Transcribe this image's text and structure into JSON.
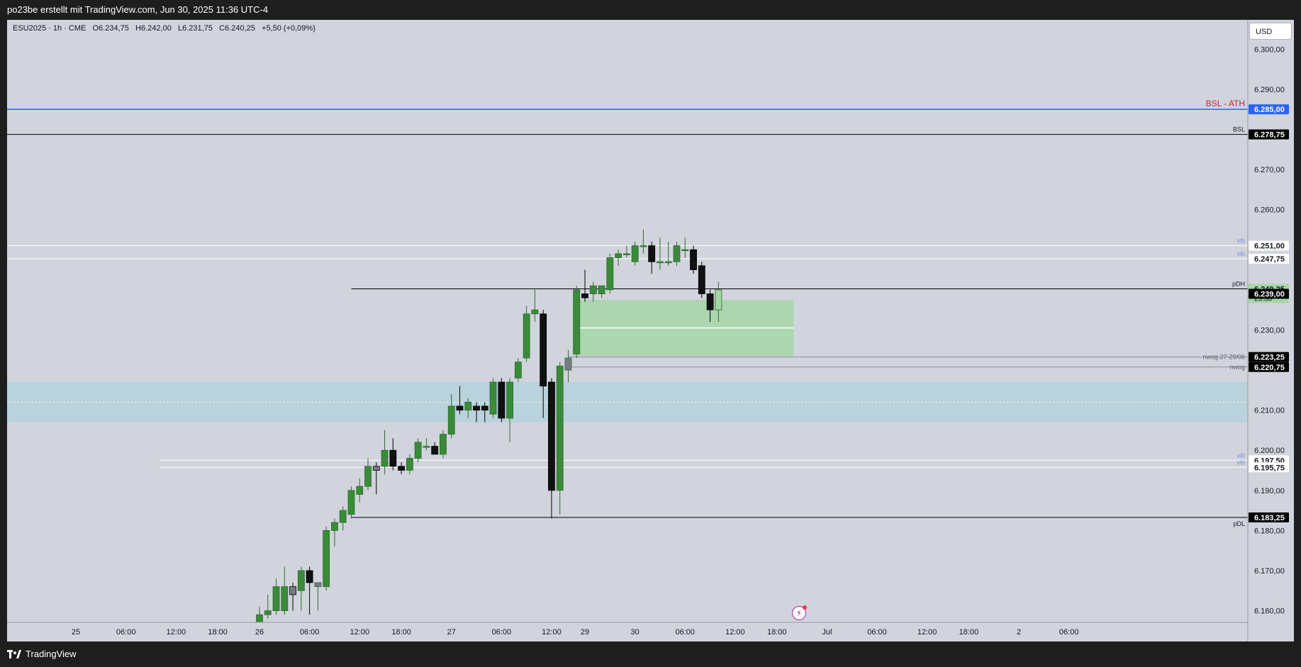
{
  "header": {
    "caption": "po23be erstellt mit TradingView.com, Jun 30, 2025 11:36 UTC-4"
  },
  "footer": {
    "brand": "TradingView",
    "logo_icon": "tradingview-logo-icon"
  },
  "legend": {
    "symbol": "ESU2025 · 1h · CME",
    "open": "O6.234,75",
    "high": "H6.242,00",
    "low": "L6.231,75",
    "close": "C6.240,25",
    "change": "+5,50 (+0,09%)"
  },
  "currency": "USD",
  "colors": {
    "background": "#d1d4dc",
    "bull": "#3a8a3a",
    "bear": "#111111",
    "neutral_candle": "#787b86",
    "bsl_ath": "#2962ff",
    "bsl_ath_text": "#c62828",
    "zone_green": "#a5d6a7",
    "zone_blue": "#b7d2dc",
    "line_black": "#000000",
    "tag_dark": "#000000",
    "tag_green": "#a5d6a7",
    "vib_text": "#7b8ed8"
  },
  "chart_data": {
    "type": "candlestick",
    "symbol": "ESU2025",
    "interval": "1h",
    "currency": "USD",
    "ylim": [
      6158,
      6307
    ],
    "y_ticks": [
      "6.300,00",
      "6.290,00",
      "6.270,00",
      "6.260,00",
      "6.230,00",
      "6.210,00",
      "6.200,00",
      "6.190,00",
      "6.180,00",
      "6.170,00",
      "6.160,00"
    ],
    "y_tick_values": [
      6300,
      6290,
      6270,
      6260,
      6230,
      6210,
      6200,
      6190,
      6180,
      6170,
      6160
    ],
    "x_ticks": [
      "25",
      "06:00",
      "12:00",
      "18:00",
      "26",
      "06:00",
      "12:00",
      "18:00",
      "27",
      "06:00",
      "12:00",
      "29",
      "30",
      "06:00",
      "12:00",
      "18:00",
      "Jul",
      "06:00",
      "12:00",
      "18:00",
      "2",
      "06:00"
    ],
    "x_tick_slots": [
      -22,
      -16,
      -10,
      -5,
      0,
      6,
      12,
      17,
      23,
      29,
      35,
      39,
      45,
      51,
      57,
      62,
      68,
      74,
      80,
      85,
      91,
      97
    ],
    "candles": [
      {
        "slot": 0,
        "o": 6157,
        "h": 6161,
        "l": 6156,
        "c": 6159
      },
      {
        "slot": 1,
        "o": 6159,
        "h": 6164,
        "l": 6158,
        "c": 6160
      },
      {
        "slot": 2,
        "o": 6160,
        "h": 6168,
        "l": 6159,
        "c": 6166
      },
      {
        "slot": 3,
        "o": 6160,
        "h": 6171,
        "l": 6159,
        "c": 6166
      },
      {
        "slot": 4,
        "o": 6166,
        "h": 6167,
        "l": 6160,
        "c": 6164
      },
      {
        "slot": 5,
        "o": 6165,
        "h": 6171,
        "l": 6160,
        "c": 6170
      },
      {
        "slot": 6,
        "o": 6170,
        "h": 6171,
        "l": 6159,
        "c": 6167
      },
      {
        "slot": 7,
        "o": 6166,
        "h": 6167,
        "l": 6160,
        "c": 6167
      },
      {
        "slot": 8,
        "o": 6166,
        "h": 6181,
        "l": 6165,
        "c": 6180
      },
      {
        "slot": 9,
        "o": 6180,
        "h": 6183,
        "l": 6176,
        "c": 6182
      },
      {
        "slot": 10,
        "o": 6182,
        "h": 6186,
        "l": 6180,
        "c": 6185
      },
      {
        "slot": 11,
        "o": 6184,
        "h": 6191,
        "l": 6183,
        "c": 6190
      },
      {
        "slot": 12,
        "o": 6189,
        "h": 6193,
        "l": 6187,
        "c": 6191
      },
      {
        "slot": 13,
        "o": 6191,
        "h": 6198,
        "l": 6190,
        "c": 6196
      },
      {
        "slot": 14,
        "o": 6196,
        "h": 6197,
        "l": 6189,
        "c": 6195
      },
      {
        "slot": 15,
        "o": 6196,
        "h": 6205,
        "l": 6194,
        "c": 6200
      },
      {
        "slot": 16,
        "o": 6200,
        "h": 6203,
        "l": 6195,
        "c": 6196
      },
      {
        "slot": 17,
        "o": 6196,
        "h": 6197,
        "l": 6194,
        "c": 6195
      },
      {
        "slot": 18,
        "o": 6195,
        "h": 6199,
        "l": 6194,
        "c": 6198
      },
      {
        "slot": 19,
        "o": 6198,
        "h": 6203,
        "l": 6197,
        "c": 6202
      },
      {
        "slot": 20,
        "o": 6201,
        "h": 6203,
        "l": 6200,
        "c": 6201
      },
      {
        "slot": 21,
        "o": 6201,
        "h": 6202,
        "l": 6199,
        "c": 6199
      },
      {
        "slot": 22,
        "o": 6199,
        "h": 6205,
        "l": 6198,
        "c": 6204
      },
      {
        "slot": 23,
        "o": 6204,
        "h": 6214,
        "l": 6203,
        "c": 6211
      },
      {
        "slot": 24,
        "o": 6211,
        "h": 6216,
        "l": 6209,
        "c": 6210
      },
      {
        "slot": 25,
        "o": 6210,
        "h": 6213,
        "l": 6208,
        "c": 6212
      },
      {
        "slot": 26,
        "o": 6211,
        "h": 6212,
        "l": 6207,
        "c": 6210
      },
      {
        "slot": 27,
        "o": 6211,
        "h": 6212,
        "l": 6207,
        "c": 6210
      },
      {
        "slot": 28,
        "o": 6209,
        "h": 6218,
        "l": 6208,
        "c": 6217
      },
      {
        "slot": 29,
        "o": 6217,
        "h": 6218,
        "l": 6207,
        "c": 6208
      },
      {
        "slot": 30,
        "o": 6208,
        "h": 6218,
        "l": 6202,
        "c": 6217
      },
      {
        "slot": 31,
        "o": 6218,
        "h": 6223,
        "l": 6217,
        "c": 6222
      },
      {
        "slot": 32,
        "o": 6223,
        "h": 6236,
        "l": 6222,
        "c": 6234
      },
      {
        "slot": 33,
        "o": 6234,
        "h": 6240,
        "l": 6232,
        "c": 6235
      },
      {
        "slot": 34,
        "o": 6234,
        "h": 6235,
        "l": 6208,
        "c": 6216
      },
      {
        "slot": 35,
        "o": 6217,
        "h": 6218,
        "l": 6183,
        "c": 6190
      },
      {
        "slot": 36,
        "o": 6190,
        "h": 6222,
        "l": 6184,
        "c": 6221
      },
      {
        "slot": 37,
        "o": 6220,
        "h": 6225,
        "l": 6217,
        "c": 6223
      },
      {
        "slot": 38,
        "o": 6224,
        "h": 6241,
        "l": 6223,
        "c": 6240
      },
      {
        "slot": 39,
        "o": 6239,
        "h": 6245,
        "l": 6237,
        "c": 6238
      },
      {
        "slot": 40,
        "o": 6239,
        "h": 6242,
        "l": 6237,
        "c": 6241
      },
      {
        "slot": 41,
        "o": 6239,
        "h": 6241,
        "l": 6238,
        "c": 6241
      },
      {
        "slot": 42,
        "o": 6240,
        "h": 6249,
        "l": 6239,
        "c": 6248
      },
      {
        "slot": 43,
        "o": 6248,
        "h": 6250,
        "l": 6246,
        "c": 6249
      },
      {
        "slot": 44,
        "o": 6249,
        "h": 6251,
        "l": 6248,
        "c": 6249
      },
      {
        "slot": 45,
        "o": 6247,
        "h": 6252,
        "l": 6246,
        "c": 6251
      },
      {
        "slot": 46,
        "o": 6251,
        "h": 6255,
        "l": 6249,
        "c": 6251
      },
      {
        "slot": 47,
        "o": 6251,
        "h": 6252,
        "l": 6244,
        "c": 6247
      },
      {
        "slot": 48,
        "o": 6247,
        "h": 6253,
        "l": 6245,
        "c": 6247
      },
      {
        "slot": 49,
        "o": 6247,
        "h": 6252,
        "l": 6246,
        "c": 6247
      },
      {
        "slot": 50,
        "o": 6247,
        "h": 6252,
        "l": 6246,
        "c": 6251
      },
      {
        "slot": 51,
        "o": 6250,
        "h": 6253,
        "l": 6248,
        "c": 6250
      },
      {
        "slot": 52,
        "o": 6250,
        "h": 6251,
        "l": 6244,
        "c": 6245
      },
      {
        "slot": 53,
        "o": 6246,
        "h": 6247,
        "l": 6238,
        "c": 6239
      },
      {
        "slot": 54,
        "o": 6239,
        "h": 6240,
        "l": 6232,
        "c": 6235
      },
      {
        "slot": 55,
        "o": 6235,
        "h": 6242,
        "l": 6232,
        "c": 6240
      }
    ],
    "neutral_slots": [
      4,
      7,
      14,
      37
    ],
    "levels": [
      {
        "name": "BSL - ATH",
        "price": 6285,
        "tag": "6.285,00",
        "style": "blue"
      },
      {
        "name": "BSL",
        "price": 6278.75,
        "tag": "6.278,75",
        "style": "black"
      },
      {
        "name": "vib",
        "price": 6251,
        "tag": "6.251,00",
        "style": "vib"
      },
      {
        "name": "vib",
        "price": 6247.75,
        "tag": "6.247,75",
        "style": "vib"
      },
      {
        "name": "pDH",
        "price": 6240.25,
        "tag": "6.240,25",
        "style": "pdh"
      },
      {
        "name": "nwog 27-29/06",
        "price": 6223.25,
        "tag": "6.223,25",
        "style": "gray"
      },
      {
        "name": "nwog",
        "price": 6220.75,
        "tag": "6.220,75",
        "style": "gray"
      },
      {
        "name": "vib",
        "price": 6197.5,
        "tag": "6.197,50",
        "style": "vib"
      },
      {
        "name": "vib",
        "price": 6195.75,
        "tag": "6.195,75",
        "style": "vib"
      },
      {
        "name": "pDL",
        "price": 6183.25,
        "tag": "6.183,25",
        "style": "pdl"
      }
    ],
    "last_price": {
      "price": 6240.25,
      "tag": "6.240,25",
      "countdown": "23:38"
    },
    "cursor_price": {
      "price": 6239,
      "tag": "6.239,00"
    },
    "zones": [
      {
        "type": "green",
        "from_slot": 37.5,
        "to_slot": 64,
        "top": 6237.5,
        "bottom": 6223.5,
        "mid": 6230.5
      },
      {
        "type": "blue",
        "from_slot": -999,
        "to_slot": 999,
        "top": 6217,
        "bottom": 6207,
        "mid": 6212
      }
    ]
  }
}
